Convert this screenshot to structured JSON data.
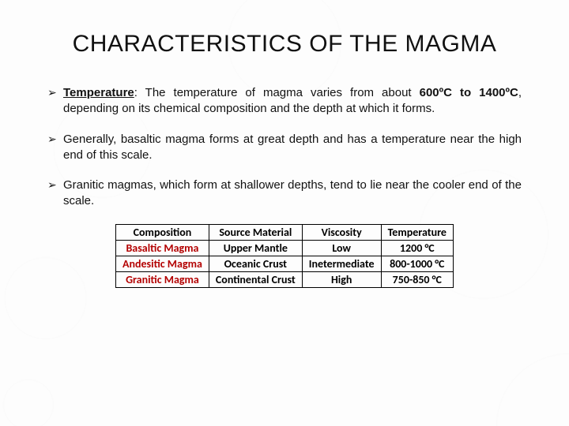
{
  "title": "CHARACTERISTICS OF THE MAGMA",
  "bullets": [
    {
      "lead_bold_underline": "Temperature",
      "lead_suffix": ": The temperature of magma varies from about ",
      "bold_inline": "600ºC to 1400ºC",
      "rest": ", depending on its chemical composition and the depth at which it forms."
    },
    {
      "text": "Generally, basaltic magma forms at great depth and has a temperature near the high end of this scale."
    },
    {
      "text": "Granitic magmas, which form at shallower depths, tend to lie near the cooler end of the scale."
    }
  ],
  "table": {
    "columns": [
      "Composition",
      "Source Material",
      "Viscosity",
      "Temperature"
    ],
    "rows": [
      [
        "Basaltic Magma",
        "Upper Mantle",
        "Low",
        "1200 °C"
      ],
      [
        "Andesitic Magma",
        "Oceanic  Crust",
        "Inetermediate",
        "800-1000 °C"
      ],
      [
        "Granitic Magma",
        "Continental Crust",
        "High",
        "750-850 °C"
      ]
    ],
    "rowlabel_color": "#b30000",
    "header_bg": "#ffffff",
    "cell_bg": "#ffffff",
    "border_color": "#000000",
    "font_family": "Calibri",
    "header_fontweight": 700,
    "cell_fontweight": 700
  }
}
